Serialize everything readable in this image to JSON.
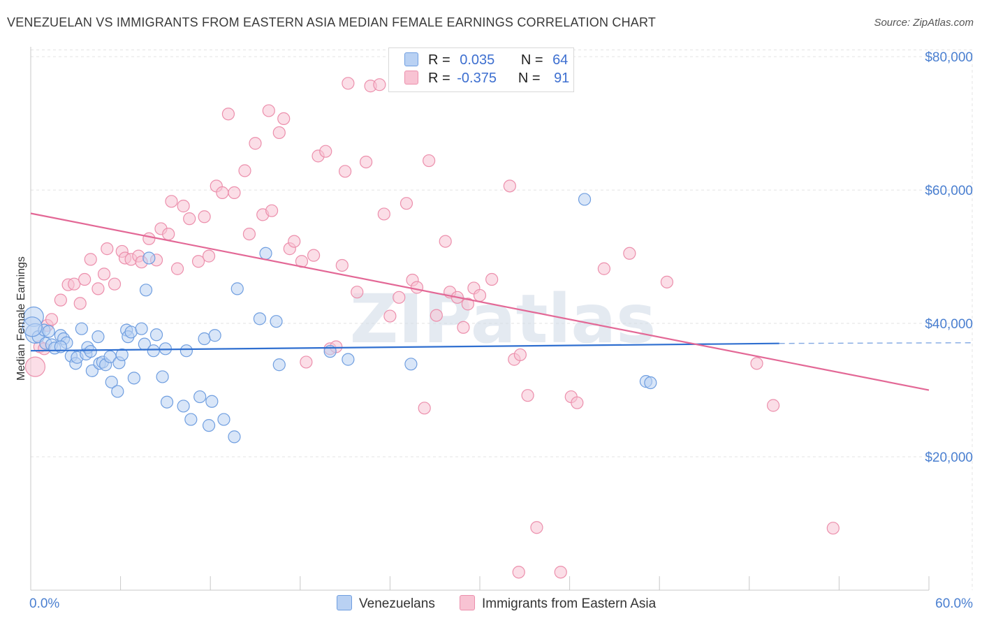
{
  "title": "VENEZUELAN VS IMMIGRANTS FROM EASTERN ASIA MEDIAN FEMALE EARNINGS CORRELATION CHART",
  "source": "Source: ZipAtlas.com",
  "watermark": "ZIPatlas",
  "colors": {
    "blue_fill": "#b9d1f3",
    "blue_stroke": "#6f9ee0",
    "blue_line": "#2f6fd0",
    "pink_fill": "#f8c3d3",
    "pink_stroke": "#ec8fac",
    "pink_line": "#e36896",
    "tick_text": "#4a7fd0",
    "grid": "#e3e3e3"
  },
  "legend": {
    "rows": [
      {
        "r_label": "R =",
        "r_value": "0.035",
        "n_label": "N =",
        "n_value": "64",
        "color": "#b9d1f3",
        "stroke": "#6f9ee0"
      },
      {
        "r_label": "R =",
        "r_value": "-0.375",
        "n_label": "N =",
        "n_value": "91",
        "color": "#f8c3d3",
        "stroke": "#ec8fac"
      }
    ]
  },
  "bottom_legend": [
    {
      "label": "Venezuelans",
      "color": "#b9d1f3",
      "stroke": "#6f9ee0"
    },
    {
      "label": "Immigrants from Eastern Asia",
      "color": "#f8c3d3",
      "stroke": "#ec8fac"
    }
  ],
  "chart_data": {
    "type": "scatter",
    "title": "VENEZUELAN VS IMMIGRANTS FROM EASTERN ASIA MEDIAN FEMALE EARNINGS CORRELATION CHART",
    "xlabel": "",
    "ylabel": "Median Female Earnings",
    "xlim": [
      0,
      60
    ],
    "ylim": [
      0,
      82000
    ],
    "x_tick_labels": [
      {
        "value": 0,
        "label": "0.0%"
      },
      {
        "value": 60,
        "label": "60.0%"
      }
    ],
    "y_tick_labels": [
      {
        "value": 20000,
        "label": "$20,000"
      },
      {
        "value": 40000,
        "label": "$40,000"
      },
      {
        "value": 60000,
        "label": "$60,000"
      },
      {
        "value": 80000,
        "label": "$80,000"
      }
    ],
    "grid": true,
    "legend_position": "top-center",
    "series": [
      {
        "name": "Venezuelans",
        "r": 0.035,
        "n": 64,
        "trend": {
          "x": [
            0,
            50
          ],
          "y": [
            35900,
            37000
          ],
          "dashed_to": [
            60,
            37100
          ]
        },
        "points": [
          [
            0.2,
            41000
          ],
          [
            0.3,
            38500
          ],
          [
            0.5,
            38000
          ],
          [
            0.9,
            39000
          ],
          [
            1.0,
            37000
          ],
          [
            1.2,
            38800
          ],
          [
            1.4,
            36800
          ],
          [
            1.6,
            36300
          ],
          [
            2.0,
            38200
          ],
          [
            2.2,
            37700
          ],
          [
            2.4,
            37100
          ],
          [
            2.7,
            35100
          ],
          [
            3.0,
            34000
          ],
          [
            3.1,
            34900
          ],
          [
            3.4,
            39200
          ],
          [
            3.7,
            35400
          ],
          [
            3.8,
            36400
          ],
          [
            4.0,
            35800
          ],
          [
            4.1,
            32900
          ],
          [
            4.5,
            38000
          ],
          [
            4.6,
            34000
          ],
          [
            4.8,
            34200
          ],
          [
            5.0,
            33800
          ],
          [
            5.3,
            35000
          ],
          [
            5.4,
            31200
          ],
          [
            5.8,
            29800
          ],
          [
            5.9,
            34100
          ],
          [
            6.1,
            35300
          ],
          [
            6.4,
            39000
          ],
          [
            6.5,
            38000
          ],
          [
            6.7,
            38700
          ],
          [
            6.9,
            31800
          ],
          [
            7.4,
            39200
          ],
          [
            7.6,
            36900
          ],
          [
            7.7,
            45000
          ],
          [
            7.9,
            49800
          ],
          [
            8.2,
            35900
          ],
          [
            8.4,
            38300
          ],
          [
            8.8,
            32000
          ],
          [
            9.0,
            36200
          ],
          [
            9.1,
            28200
          ],
          [
            10.2,
            27600
          ],
          [
            10.4,
            35900
          ],
          [
            10.7,
            25600
          ],
          [
            11.3,
            29000
          ],
          [
            11.6,
            37700
          ],
          [
            11.9,
            24700
          ],
          [
            12.1,
            28300
          ],
          [
            12.3,
            38200
          ],
          [
            12.9,
            25600
          ],
          [
            13.6,
            23000
          ],
          [
            13.8,
            45200
          ],
          [
            15.3,
            40700
          ],
          [
            15.7,
            50500
          ],
          [
            16.4,
            40300
          ],
          [
            16.6,
            33800
          ],
          [
            20.0,
            35800
          ],
          [
            21.2,
            34600
          ],
          [
            25.4,
            33900
          ],
          [
            37.0,
            58600
          ],
          [
            41.1,
            31300
          ],
          [
            41.4,
            31100
          ],
          [
            0.1,
            39500
          ],
          [
            2.0,
            36500
          ]
        ]
      },
      {
        "name": "Immigrants from Eastern Asia",
        "r": -0.375,
        "n": 91,
        "trend": {
          "x": [
            0,
            60
          ],
          "y": [
            56500,
            30000
          ]
        },
        "points": [
          [
            0.3,
            33500
          ],
          [
            0.6,
            36500
          ],
          [
            1.1,
            39700
          ],
          [
            1.4,
            40600
          ],
          [
            2.0,
            43500
          ],
          [
            2.5,
            45800
          ],
          [
            2.9,
            45900
          ],
          [
            3.3,
            43000
          ],
          [
            3.6,
            46600
          ],
          [
            4.0,
            49600
          ],
          [
            4.5,
            45200
          ],
          [
            4.9,
            47400
          ],
          [
            5.1,
            51200
          ],
          [
            5.6,
            45900
          ],
          [
            6.1,
            50800
          ],
          [
            6.3,
            49800
          ],
          [
            6.7,
            49600
          ],
          [
            7.2,
            50100
          ],
          [
            7.4,
            49200
          ],
          [
            7.9,
            52700
          ],
          [
            8.4,
            49500
          ],
          [
            8.7,
            54200
          ],
          [
            9.2,
            53400
          ],
          [
            9.4,
            58300
          ],
          [
            9.8,
            48200
          ],
          [
            10.2,
            57600
          ],
          [
            10.6,
            55700
          ],
          [
            11.2,
            49300
          ],
          [
            11.6,
            56000
          ],
          [
            11.9,
            50100
          ],
          [
            12.4,
            60600
          ],
          [
            12.8,
            59600
          ],
          [
            13.2,
            71400
          ],
          [
            13.6,
            59600
          ],
          [
            14.3,
            62900
          ],
          [
            14.6,
            53400
          ],
          [
            15.0,
            67000
          ],
          [
            15.5,
            56300
          ],
          [
            15.9,
            71900
          ],
          [
            16.1,
            56900
          ],
          [
            16.6,
            68600
          ],
          [
            16.9,
            70700
          ],
          [
            17.3,
            51200
          ],
          [
            17.6,
            52300
          ],
          [
            18.1,
            49300
          ],
          [
            18.4,
            34200
          ],
          [
            18.9,
            50200
          ],
          [
            19.2,
            65100
          ],
          [
            19.7,
            65800
          ],
          [
            20.0,
            36200
          ],
          [
            20.4,
            36500
          ],
          [
            20.8,
            48700
          ],
          [
            21.0,
            62800
          ],
          [
            21.2,
            76000
          ],
          [
            21.8,
            44700
          ],
          [
            22.4,
            64200
          ],
          [
            22.7,
            75600
          ],
          [
            23.3,
            75800
          ],
          [
            23.6,
            56400
          ],
          [
            24.0,
            41100
          ],
          [
            24.6,
            43900
          ],
          [
            25.1,
            58000
          ],
          [
            25.5,
            46500
          ],
          [
            25.8,
            45400
          ],
          [
            26.3,
            27300
          ],
          [
            26.6,
            64400
          ],
          [
            27.1,
            41200
          ],
          [
            27.7,
            52300
          ],
          [
            28.0,
            44700
          ],
          [
            28.5,
            43900
          ],
          [
            28.9,
            39400
          ],
          [
            29.2,
            42900
          ],
          [
            29.6,
            45300
          ],
          [
            30.0,
            44200
          ],
          [
            30.8,
            46600
          ],
          [
            32.0,
            60600
          ],
          [
            32.3,
            34600
          ],
          [
            32.7,
            35300
          ],
          [
            33.2,
            29200
          ],
          [
            33.8,
            9400
          ],
          [
            32.6,
            2700
          ],
          [
            35.4,
            2700
          ],
          [
            36.1,
            29000
          ],
          [
            36.5,
            28100
          ],
          [
            38.3,
            48200
          ],
          [
            40.0,
            50500
          ],
          [
            42.5,
            46200
          ],
          [
            48.5,
            34000
          ],
          [
            49.6,
            27700
          ],
          [
            53.6,
            9300
          ],
          [
            0.9,
            36200
          ]
        ]
      }
    ]
  }
}
